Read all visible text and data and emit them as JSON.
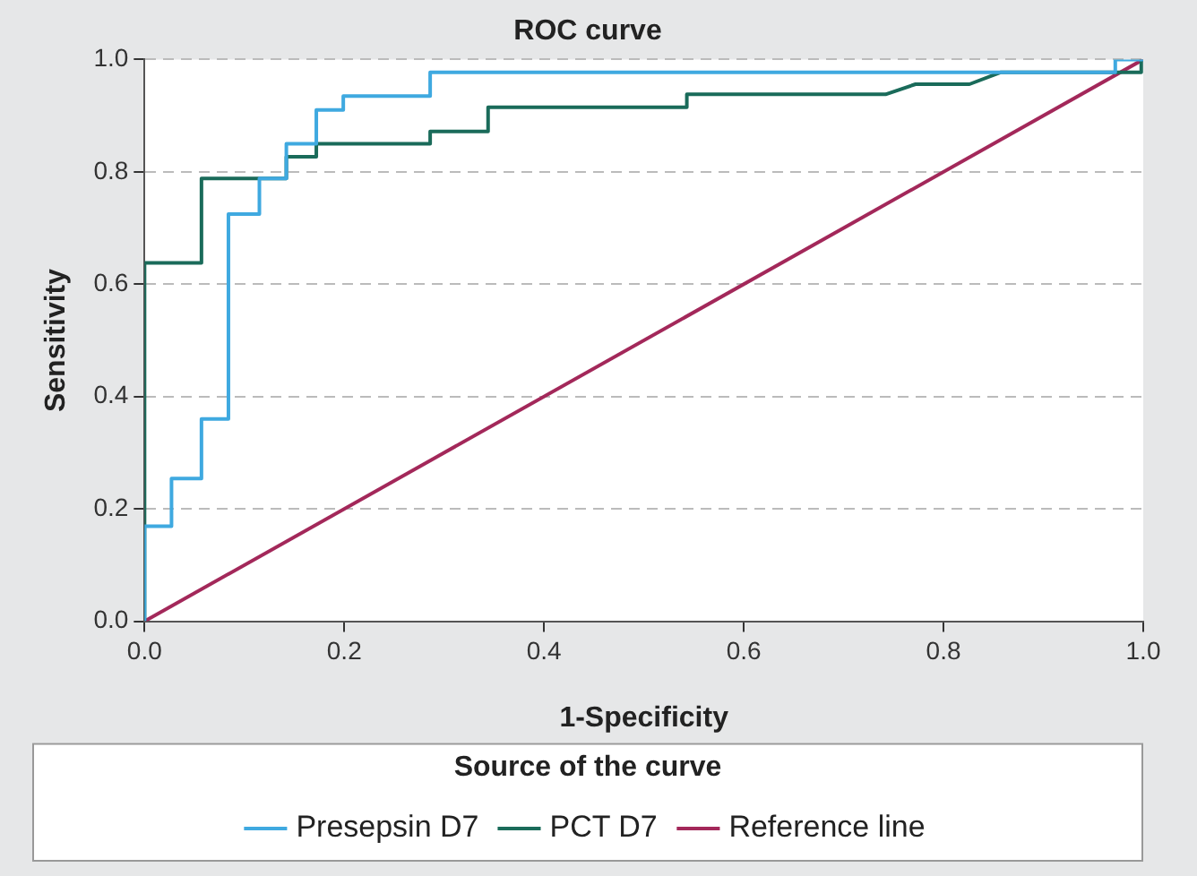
{
  "chart_data": {
    "type": "line",
    "title": "ROC curve",
    "xlabel": "1-Specificity",
    "ylabel": "Sensitivity",
    "legend_title": "Source of the curve",
    "legend": "bottom",
    "grid": "y",
    "marker": "none",
    "line_style": "solid",
    "xlim": [
      0,
      1
    ],
    "ylim": [
      0,
      1
    ],
    "xticks": [
      {
        "value": 0,
        "label": "0.0"
      },
      {
        "value": 0.2,
        "label": "0.2"
      },
      {
        "value": 0.4,
        "label": "0.4"
      },
      {
        "value": 0.6,
        "label": "0.6"
      },
      {
        "value": 0.8,
        "label": "0.8"
      },
      {
        "value": 1,
        "label": "1.0"
      }
    ],
    "yticks": [
      {
        "value": 0,
        "label": "0.0"
      },
      {
        "value": 0.2,
        "label": "0.2"
      },
      {
        "value": 0.4,
        "label": "0.4"
      },
      {
        "value": 0.6,
        "label": "0.6"
      },
      {
        "value": 0.8,
        "label": "0.8"
      },
      {
        "value": 1,
        "label": "1.0"
      }
    ],
    "series": [
      {
        "name": "Presepsin D7",
        "color": "#3fa9e0",
        "x": [
          0,
          0,
          0.027,
          0.027,
          0.057,
          0.057,
          0.084,
          0.084,
          0.115,
          0.115,
          0.142,
          0.142,
          0.172,
          0.172,
          0.199,
          0.199,
          0.286,
          0.286,
          0.972,
          0.972,
          1
        ],
        "values": [
          0,
          0.169,
          0.169,
          0.254,
          0.254,
          0.36,
          0.36,
          0.725,
          0.725,
          0.788,
          0.788,
          0.85,
          0.85,
          0.91,
          0.91,
          0.935,
          0.935,
          0.977,
          0.977,
          1,
          1
        ]
      },
      {
        "name": "PCT D7",
        "color": "#1a6b5a",
        "x": [
          0,
          0,
          0.057,
          0.057,
          0.142,
          0.142,
          0.172,
          0.172,
          0.286,
          0.286,
          0.344,
          0.344,
          0.543,
          0.543,
          0.742,
          0.772,
          0.826,
          0.857,
          0.998,
          0.998
        ],
        "values": [
          0,
          0.638,
          0.638,
          0.788,
          0.788,
          0.827,
          0.827,
          0.85,
          0.85,
          0.872,
          0.872,
          0.915,
          0.915,
          0.938,
          0.938,
          0.956,
          0.956,
          0.977,
          0.977,
          1
        ]
      },
      {
        "name": "Reference line",
        "color": "#a3285a",
        "x": [
          0,
          1
        ],
        "values": [
          0,
          1
        ]
      }
    ]
  }
}
